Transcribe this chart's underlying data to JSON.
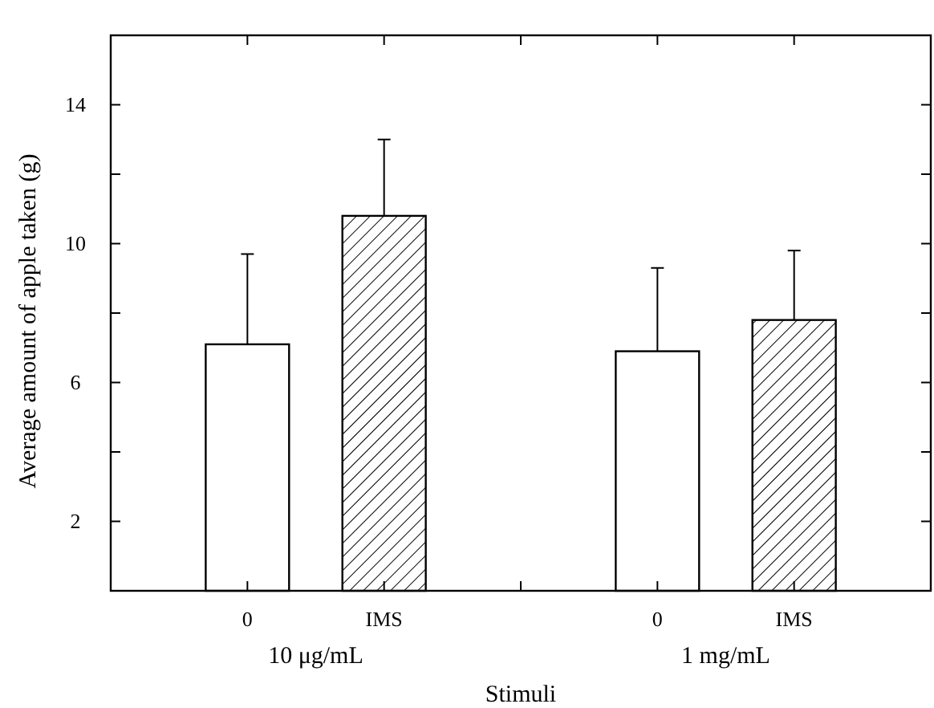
{
  "chart_data": {
    "type": "bar",
    "xlabel": "Stimuli",
    "ylabel": "Average amount of apple taken (g)",
    "categories": [
      "0",
      "IMS",
      null,
      "0",
      "IMS"
    ],
    "values": [
      7.1,
      10.8,
      null,
      6.9,
      7.8
    ],
    "colors": [
      "#ffffff",
      "#000000",
      "#ffffff",
      "#ffffff",
      "#000000"
    ],
    "errors": [
      [
        7.1,
        9.7
      ],
      [
        10.8,
        13.0
      ],
      null,
      [
        6.9,
        9.3
      ],
      [
        7.8,
        9.8
      ]
    ],
    "annotations": [
      "10 μg/mL",
      "1 mg/mL"
    ],
    "ylim": [
      0,
      16
    ],
    "yticks": [
      2,
      {
        "value": 4,
        "label": null
      },
      6,
      {
        "value": 8,
        "label": null
      },
      10,
      {
        "value": 12,
        "label": null
      },
      14
    ],
    "grid": false
  }
}
